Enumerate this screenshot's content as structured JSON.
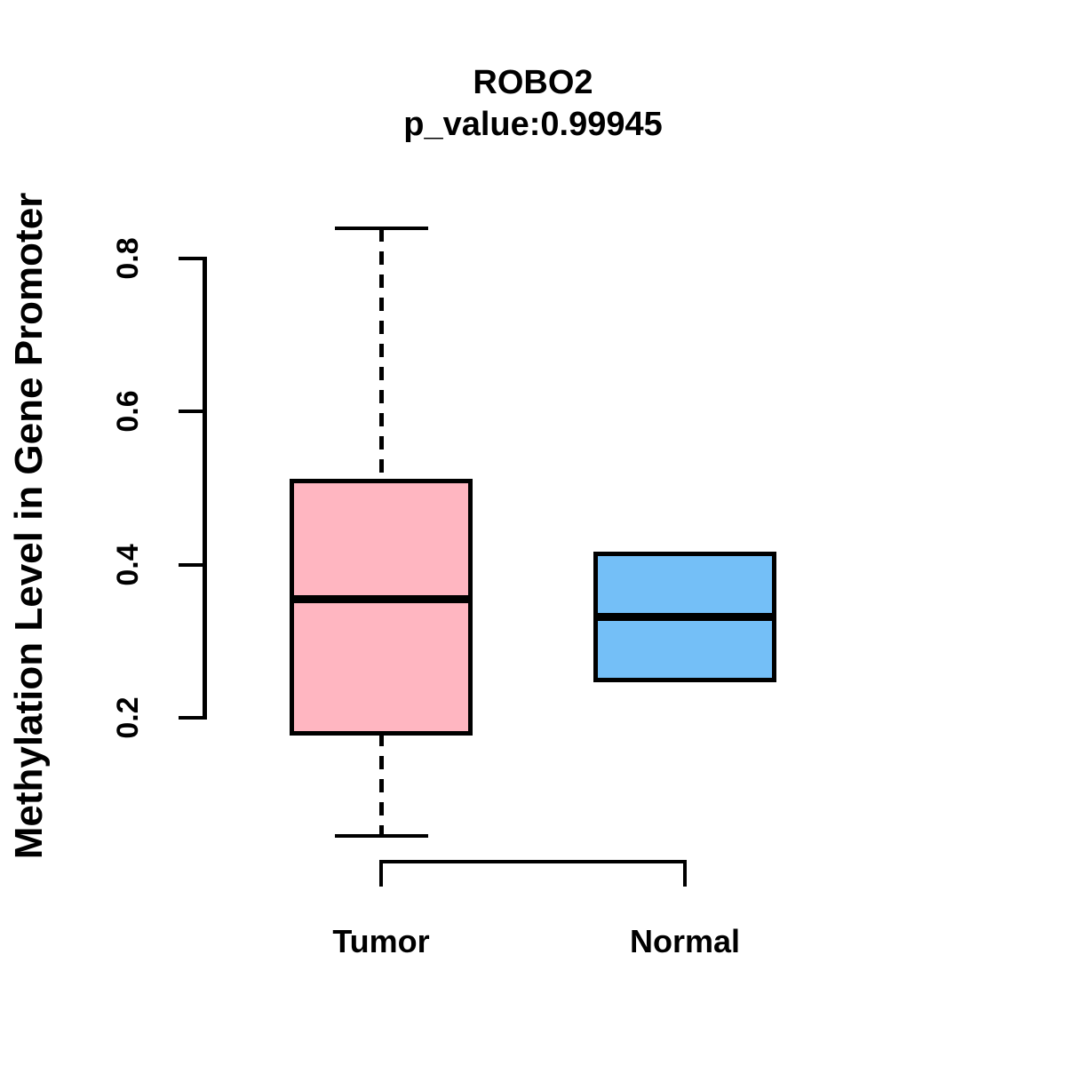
{
  "chart_data": {
    "type": "boxplot",
    "title": "ROBO2",
    "subtitle": "p_value:0.99945",
    "p_value": "0.99945",
    "ylabel": "Methylation Level in Gene Promoter",
    "xlabel": "",
    "categories": [
      "Tumor",
      "Normal"
    ],
    "yticks": [
      0.2,
      0.4,
      0.6,
      0.8
    ],
    "ylim": [
      0.2,
      0.8
    ],
    "grid": false,
    "legend": "none",
    "groups": [
      {
        "name": "Tumor",
        "color": "#FFB6C1",
        "whisker_low": 0.046,
        "q1": 0.18,
        "median": 0.355,
        "q3": 0.51,
        "whisker_high": 0.84
      },
      {
        "name": "Normal",
        "color": "#74BFF7",
        "whisker_low": 0.25,
        "q1": 0.25,
        "median": 0.332,
        "q3": 0.415,
        "whisker_high": 0.415
      }
    ],
    "colors": {
      "tumor_fill": "#FFB6C1",
      "normal_fill": "#74BFF7",
      "line": "#000000",
      "background": "#FFFFFF"
    }
  }
}
